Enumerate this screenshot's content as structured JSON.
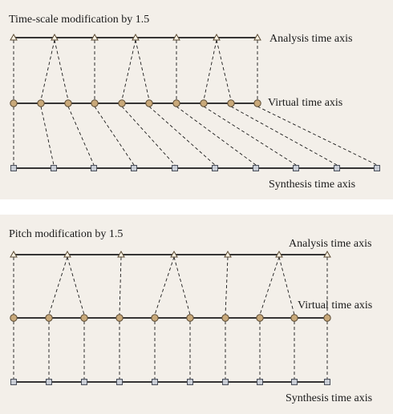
{
  "timescale": {
    "title": "Time-scale modification by 1.5",
    "analysis_label": "Analysis time axis",
    "virtual_label": "Virtual time axis",
    "synthesis_label": "Synthesis time axis"
  },
  "pitch": {
    "title": "Pitch modification by 1.5",
    "analysis_label": "Analysis time axis",
    "virtual_label": "Virtual time axis",
    "synthesis_label": "Synthesis time axis"
  },
  "colors": {
    "panel": "#f3efe9",
    "axis": "#1a1a1a",
    "marker_fill": "#c9a97a",
    "marker_stroke": "#5a4a33",
    "square_fill": "#c8ccd4",
    "square_stroke": "#4a4f5a"
  }
}
